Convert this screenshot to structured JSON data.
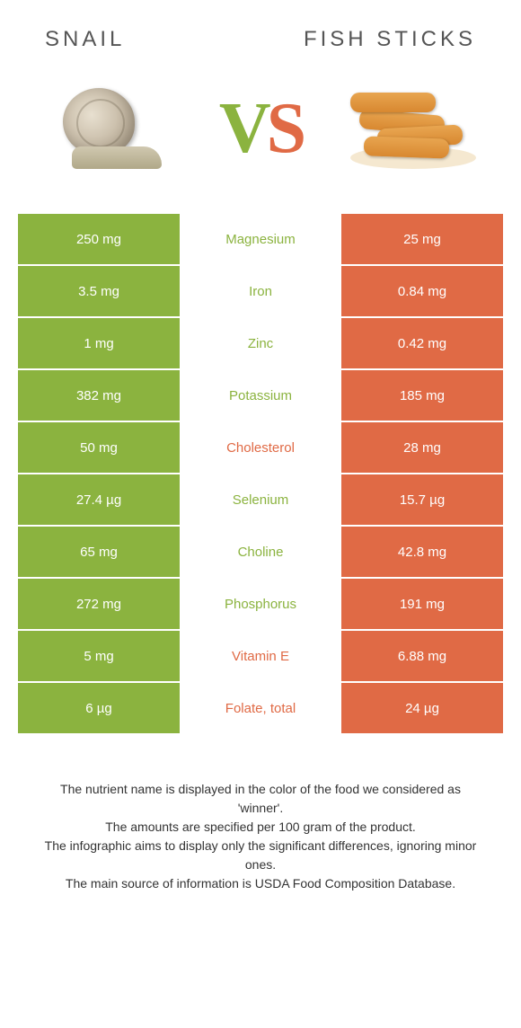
{
  "header": {
    "left_title": "SNAIL",
    "right_title": "FISH STICKS",
    "vs_v": "V",
    "vs_s": "S"
  },
  "colors": {
    "green": "#8bb33f",
    "orange": "#e06a45"
  },
  "rows": [
    {
      "left": "250 mg",
      "label": "Magnesium",
      "right": "25 mg",
      "winner": "left"
    },
    {
      "left": "3.5 mg",
      "label": "Iron",
      "right": "0.84 mg",
      "winner": "left"
    },
    {
      "left": "1 mg",
      "label": "Zinc",
      "right": "0.42 mg",
      "winner": "left"
    },
    {
      "left": "382 mg",
      "label": "Potassium",
      "right": "185 mg",
      "winner": "left"
    },
    {
      "left": "50 mg",
      "label": "Cholesterol",
      "right": "28 mg",
      "winner": "right"
    },
    {
      "left": "27.4 µg",
      "label": "Selenium",
      "right": "15.7 µg",
      "winner": "left"
    },
    {
      "left": "65 mg",
      "label": "Choline",
      "right": "42.8 mg",
      "winner": "left"
    },
    {
      "left": "272 mg",
      "label": "Phosphorus",
      "right": "191 mg",
      "winner": "left"
    },
    {
      "left": "5 mg",
      "label": "Vitamin E",
      "right": "6.88 mg",
      "winner": "right"
    },
    {
      "left": "6 µg",
      "label": "Folate, total",
      "right": "24 µg",
      "winner": "right"
    }
  ],
  "footer": {
    "line1": "The nutrient name is displayed in the color of the food we considered as 'winner'.",
    "line2": "The amounts are specified per 100 gram of the product.",
    "line3": "The infographic aims to display only the significant differences, ignoring minor ones.",
    "line4": "The main source of information is USDA Food Composition Database."
  }
}
